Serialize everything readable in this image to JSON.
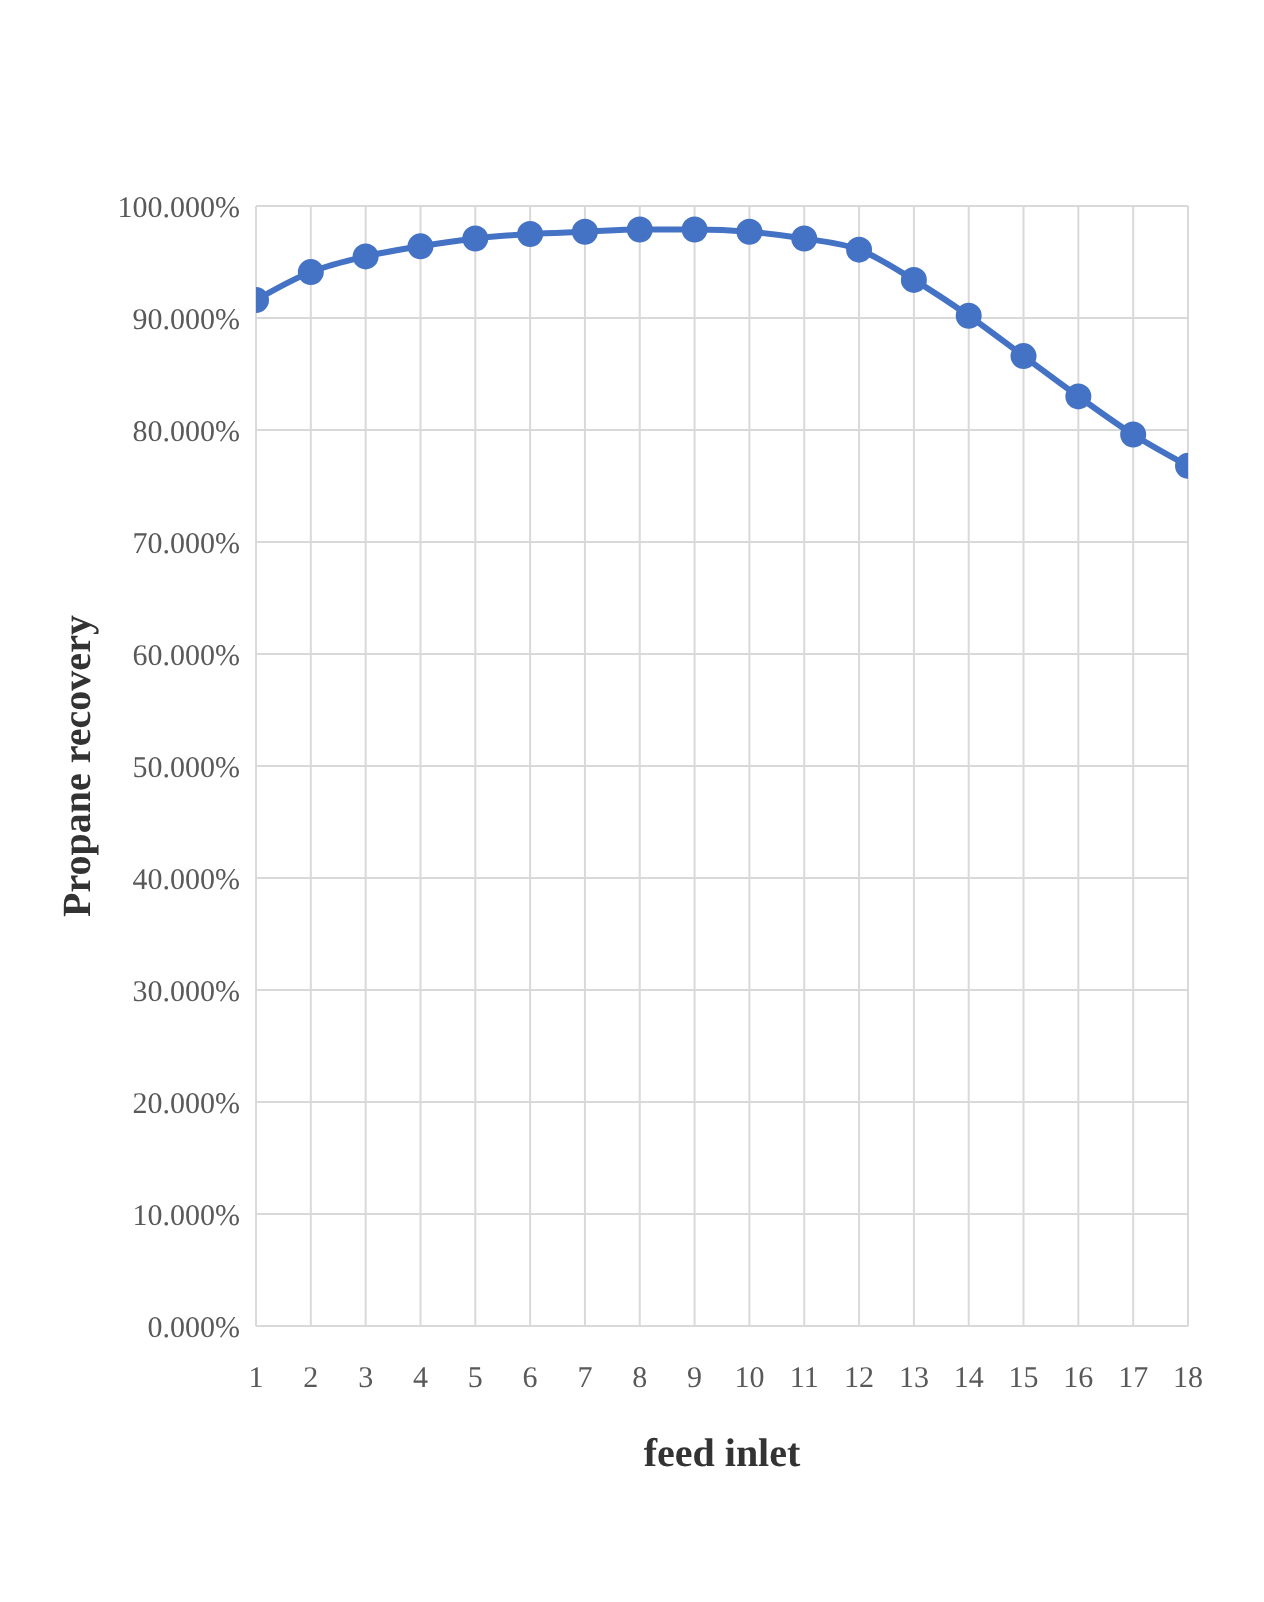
{
  "chart_data": {
    "type": "line",
    "xlabel": "feed inlet",
    "ylabel": "Propane recovery",
    "x": [
      1,
      2,
      3,
      4,
      5,
      6,
      7,
      8,
      9,
      10,
      11,
      12,
      13,
      14,
      15,
      16,
      17,
      18
    ],
    "series": [
      {
        "color": "#4472c4",
        "values": [
          91.6,
          94.1,
          95.5,
          96.4,
          97.1,
          97.5,
          97.7,
          97.9,
          97.9,
          97.7,
          97.1,
          96.1,
          93.4,
          90.2,
          86.6,
          83.0,
          79.6,
          76.8
        ]
      }
    ],
    "xlim": [
      1,
      18
    ],
    "xticks": [
      1,
      2,
      3,
      4,
      5,
      6,
      7,
      8,
      9,
      10,
      11,
      12,
      13,
      14,
      15,
      16,
      17,
      18
    ],
    "ylim": [
      0,
      100
    ],
    "yticks": [
      {
        "value": 0,
        "label": "0.000%"
      },
      {
        "value": 10,
        "label": "10.000%"
      },
      {
        "value": 20,
        "label": "20.000%"
      },
      {
        "value": 30,
        "label": "30.000%"
      },
      {
        "value": 40,
        "label": "40.000%"
      },
      {
        "value": 50,
        "label": "50.000%"
      },
      {
        "value": 60,
        "label": "60.000%"
      },
      {
        "value": 70,
        "label": "70.000%"
      },
      {
        "value": 80,
        "label": "80.000%"
      },
      {
        "value": 90,
        "label": "90.000%"
      },
      {
        "value": 100,
        "label": "100.000%"
      }
    ],
    "grid": true,
    "marker": "circle",
    "line_style": "solid",
    "legend": false
  }
}
